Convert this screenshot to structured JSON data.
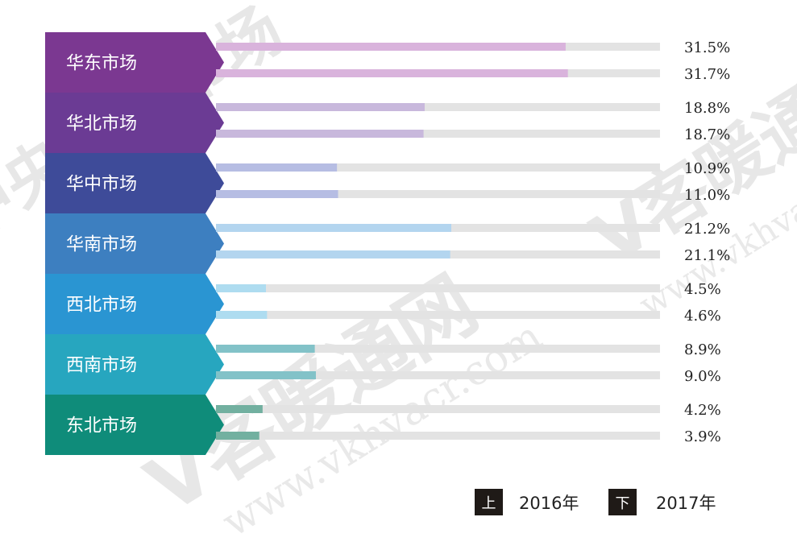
{
  "watermark": {
    "brand_text": "V客暖通网",
    "url_text": "www.vkhvacr.com",
    "top_text": "中央空调市场"
  },
  "chart_data": {
    "type": "bar",
    "categories": [
      "华东市场",
      "华北市场",
      "华中市场",
      "华南市场",
      "西北市场",
      "西南市场",
      "东北市场"
    ],
    "series": [
      {
        "name": "2016年",
        "values": [
          31.5,
          18.8,
          10.9,
          21.2,
          4.5,
          8.9,
          4.2
        ]
      },
      {
        "name": "2017年",
        "values": [
          31.7,
          18.7,
          11.0,
          21.1,
          4.6,
          9.0,
          3.9
        ]
      }
    ],
    "value_labels": [
      [
        "31.5%",
        "31.7%"
      ],
      [
        "18.8%",
        "18.7%"
      ],
      [
        "10.9%",
        "11.0%"
      ],
      [
        "21.2%",
        "21.1%"
      ],
      [
        "4.5%",
        "4.6%"
      ],
      [
        "8.9%",
        "9.0%"
      ],
      [
        "4.2%",
        "3.9%"
      ]
    ],
    "xlim": [
      0,
      40
    ],
    "grid": false,
    "legend_position": "bottom-right",
    "category_colors": [
      "#7b3891",
      "#6b3b94",
      "#3e4b99",
      "#3d7fc0",
      "#2a95d2",
      "#27a6bf",
      "#0f8c7a"
    ],
    "bar_colors": [
      "#d9b3dc",
      "#c8b8dc",
      "#b6bde3",
      "#b3d5ef",
      "#aedcf0",
      "#82c2c8",
      "#72b0a0"
    ],
    "track_color": "#e3e3e3"
  },
  "legend": {
    "items": [
      {
        "marker": "上",
        "label": "2016年"
      },
      {
        "marker": "下",
        "label": "2017年"
      }
    ]
  }
}
